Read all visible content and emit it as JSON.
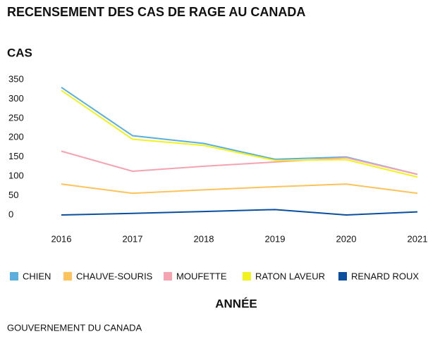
{
  "chart_data": {
    "type": "line",
    "title": "RECENSEMENT DES CAS DE RAGE AU CANADA",
    "y_axis_title": "CAS",
    "x_axis_title": "ANNÉE",
    "source": "GOUVERNEMENT DU CANADA",
    "categories": [
      "2016",
      "2017",
      "2018",
      "2019",
      "2020",
      "2021"
    ],
    "series": [
      {
        "name": "CHIEN",
        "color": "#5aafde",
        "values": [
          330,
          205,
          185,
          144,
          150,
          105
        ]
      },
      {
        "name": "CHAUVE-SOURIS",
        "color": "#fcc35a",
        "values": [
          80,
          56,
          65,
          73,
          80,
          56
        ]
      },
      {
        "name": "MOUFETTE",
        "color": "#f5a3b0",
        "values": [
          165,
          113,
          126,
          137,
          148,
          105
        ]
      },
      {
        "name": "RATON LAVEUR",
        "color": "#f2f21e",
        "values": [
          322,
          196,
          180,
          141,
          143,
          98
        ]
      },
      {
        "name": "RENARD ROUX",
        "color": "#0a4f9e",
        "values": [
          0,
          4,
          9,
          14,
          0,
          8
        ]
      }
    ],
    "ylim": [
      0,
      350
    ],
    "yticks": [
      0,
      50,
      100,
      150,
      200,
      250,
      300,
      350
    ],
    "grid": false
  }
}
